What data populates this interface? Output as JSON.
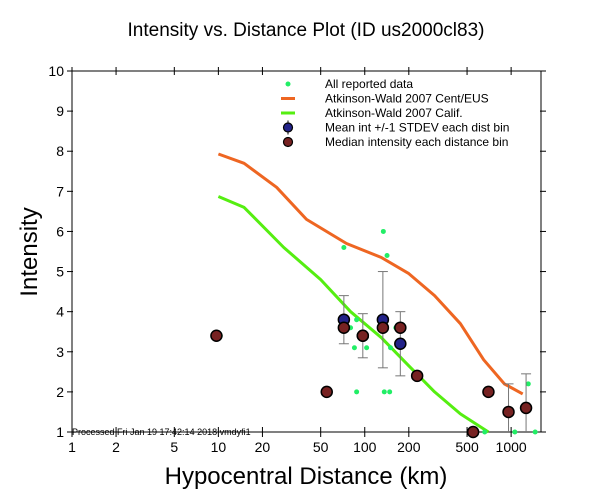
{
  "chart_data": {
    "type": "scatter",
    "title": "Intensity vs. Distance Plot (ID us2000cl83)",
    "xlabel": "Hypocentral Distance (km)",
    "ylabel": "Intensity",
    "xscale": "log",
    "xlim": [
      1,
      1600
    ],
    "ylim": [
      1,
      10
    ],
    "x_ticks": [
      1,
      2,
      5,
      10,
      20,
      50,
      100,
      200,
      500,
      1000
    ],
    "x_tick_labels": [
      "1",
      "2",
      "5",
      "10",
      "20",
      "50",
      "100",
      "200",
      "500",
      "1000"
    ],
    "y_ticks": [
      1,
      2,
      3,
      4,
      5,
      6,
      7,
      8,
      9,
      10
    ],
    "y_tick_labels": [
      "1",
      "2",
      "3",
      "4",
      "5",
      "6",
      "7",
      "8",
      "9",
      "10"
    ],
    "grid": false,
    "legend_position": "top-right",
    "footnote": "Processed Fri Jan 19 17:42:14 2018 vmdyfi1",
    "colors": {
      "all_data": "#22ee66",
      "cent_eus": "#ee6622",
      "calif": "#55ee11",
      "mean": "#222288",
      "median": "#772222",
      "errorbar": "#777777"
    },
    "legend": [
      {
        "label": "All reported data",
        "marker": "dot"
      },
      {
        "label": "Atkinson-Wald 2007 Cent/EUS",
        "marker": "line"
      },
      {
        "label": "Atkinson-Wald 2007 Calif.",
        "marker": "line"
      },
      {
        "label": "Mean int +/-1 STDEV each dist bin",
        "marker": "circle-errorbar"
      },
      {
        "label": "Median intensity each distance bin",
        "marker": "circle"
      }
    ],
    "series": [
      {
        "name": "All reported data",
        "type": "scatter",
        "points": [
          [
            10.3,
            3.4
          ],
          [
            72,
            5.6
          ],
          [
            80,
            3.6
          ],
          [
            88,
            3.8
          ],
          [
            85,
            3.1
          ],
          [
            88,
            2.0
          ],
          [
            103,
            3.1
          ],
          [
            129,
            3.6
          ],
          [
            134,
            6.0
          ],
          [
            142,
            5.4
          ],
          [
            136,
            2.0
          ],
          [
            148,
            2.0
          ],
          [
            150,
            3.1
          ],
          [
            163,
            3.6
          ],
          [
            660,
            1.0
          ],
          [
            1060,
            1.0
          ],
          [
            1310,
            2.2
          ],
          [
            1460,
            1.0
          ]
        ]
      },
      {
        "name": "Atkinson-Wald 2007 Cent/EUS",
        "type": "line",
        "points": [
          [
            10,
            7.93
          ],
          [
            15,
            7.7
          ],
          [
            25,
            7.1
          ],
          [
            40,
            6.3
          ],
          [
            75,
            5.7
          ],
          [
            130,
            5.35
          ],
          [
            200,
            4.95
          ],
          [
            300,
            4.4
          ],
          [
            450,
            3.7
          ],
          [
            650,
            2.8
          ],
          [
            900,
            2.2
          ],
          [
            1200,
            1.95
          ]
        ]
      },
      {
        "name": "Atkinson-Wald 2007 Calif.",
        "type": "line",
        "points": [
          [
            10,
            6.87
          ],
          [
            15,
            6.6
          ],
          [
            28,
            5.6
          ],
          [
            50,
            4.8
          ],
          [
            80,
            4.0
          ],
          [
            130,
            3.35
          ],
          [
            200,
            2.65
          ],
          [
            300,
            2.0
          ],
          [
            450,
            1.45
          ],
          [
            700,
            1.0
          ]
        ]
      },
      {
        "name": "Mean int +/-1 STDEV each dist bin",
        "type": "errorbar",
        "points": [
          {
            "x": 72,
            "y": 3.8,
            "ylow": 3.2,
            "yhigh": 4.4
          },
          {
            "x": 133,
            "y": 3.8,
            "ylow": 2.6,
            "yhigh": 5.0
          },
          {
            "x": 175,
            "y": 3.2,
            "ylow": 2.4,
            "yhigh": 4.0
          },
          {
            "x": 97,
            "y": 3.4,
            "ylow": 2.85,
            "yhigh": 3.95
          },
          {
            "x": 960,
            "y": 1.5,
            "ylow": 0.5,
            "yhigh": 2.2
          },
          {
            "x": 1265,
            "y": 1.6,
            "ylow": 0.5,
            "yhigh": 2.45
          }
        ]
      },
      {
        "name": "Median intensity each distance bin",
        "type": "scatter",
        "points": [
          [
            9.7,
            3.4
          ],
          [
            55,
            2.0
          ],
          [
            72,
            3.6
          ],
          [
            97,
            3.4
          ],
          [
            133,
            3.6
          ],
          [
            175,
            3.6
          ],
          [
            228,
            2.4
          ],
          [
            550,
            1.0
          ],
          [
            700,
            2.0
          ],
          [
            960,
            1.5
          ],
          [
            1265,
            1.6
          ]
        ]
      }
    ]
  }
}
